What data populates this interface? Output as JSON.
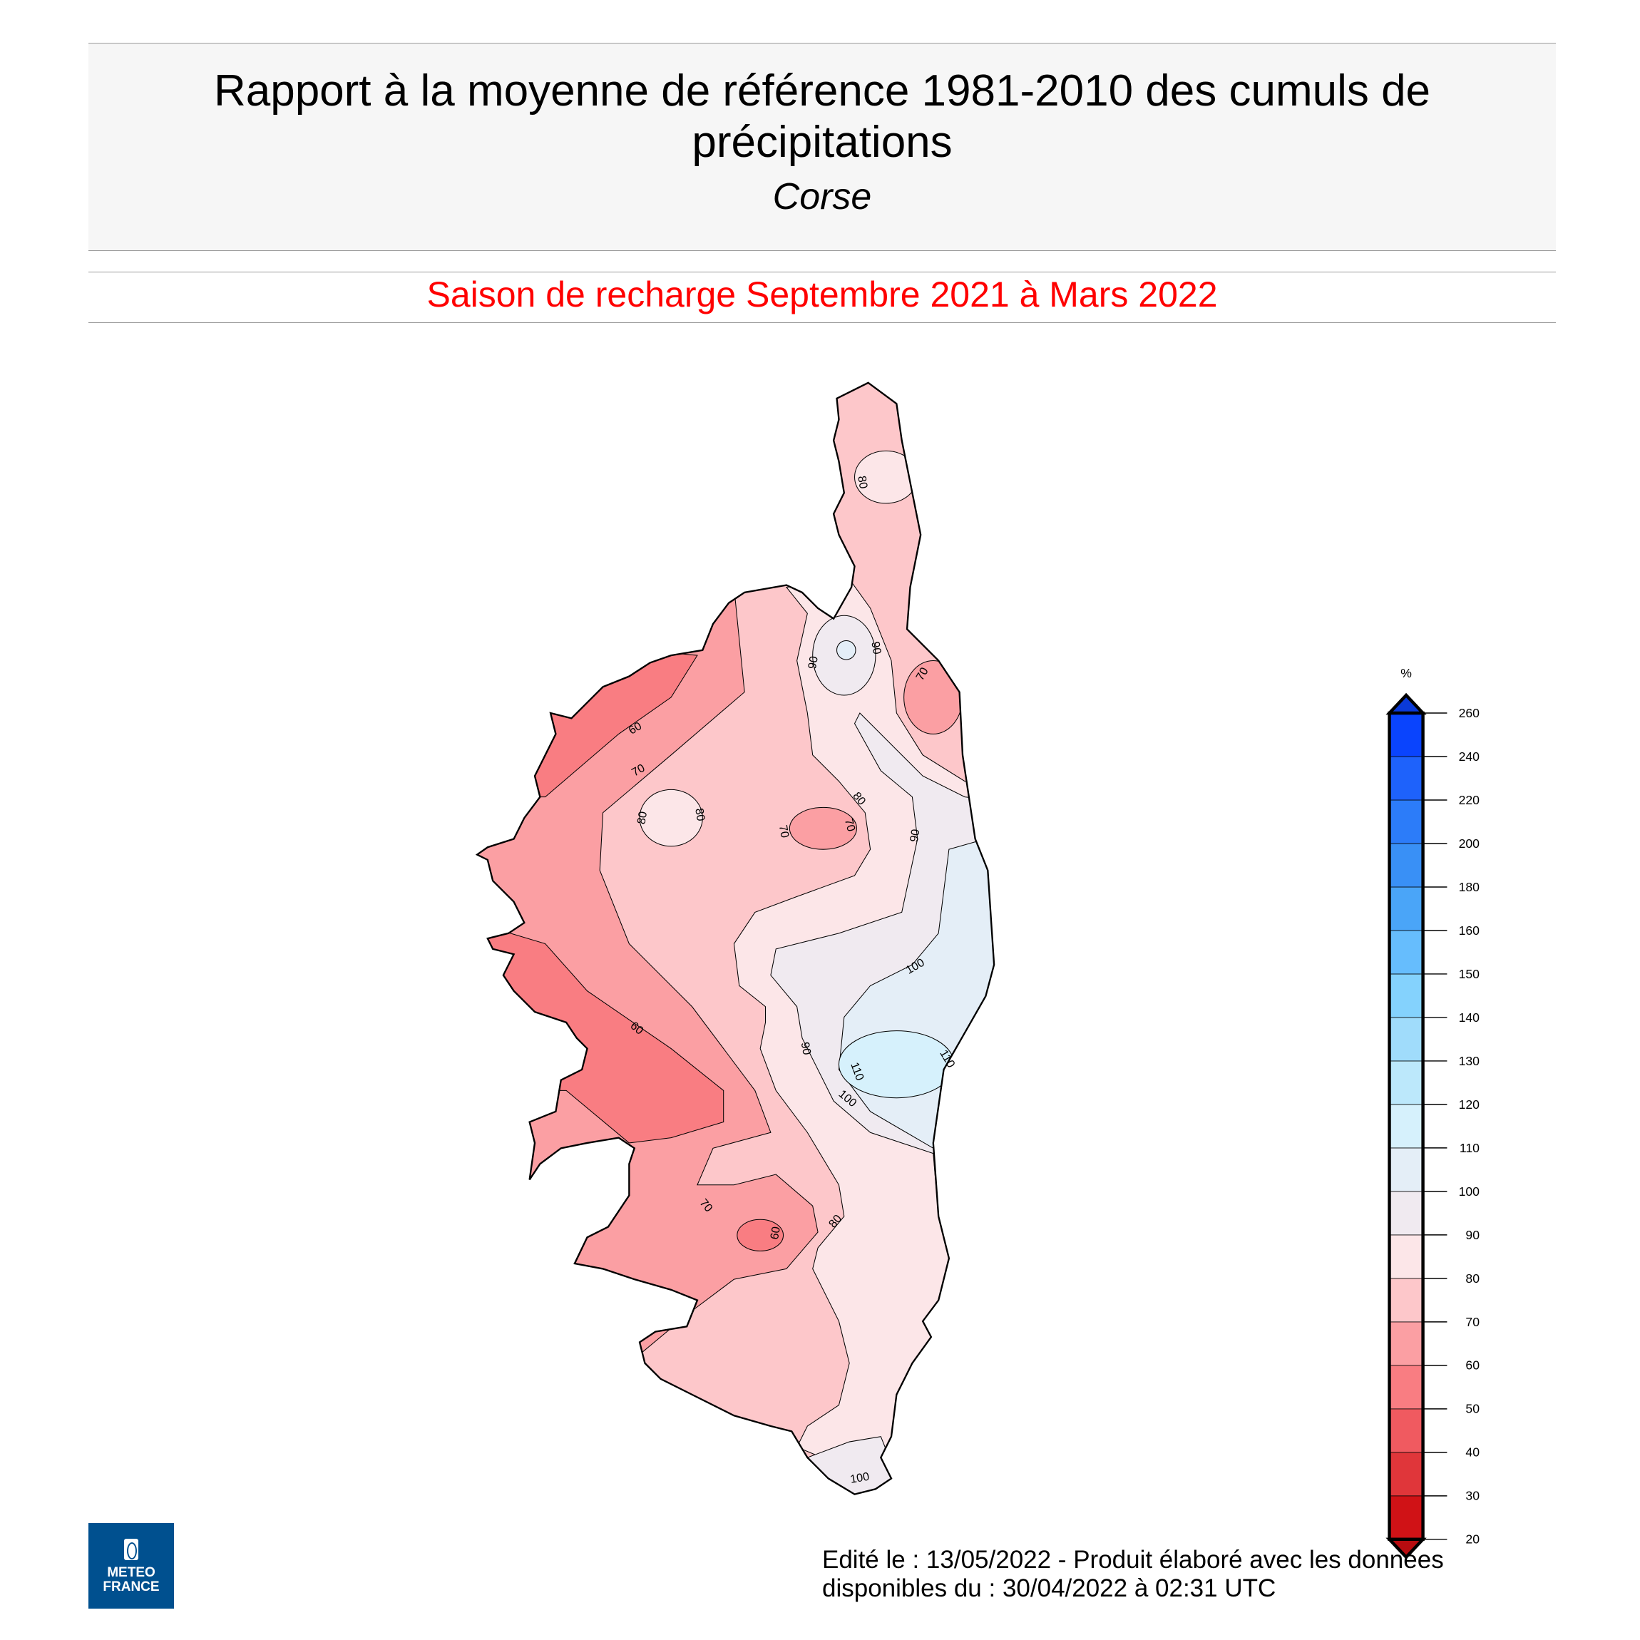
{
  "header": {
    "title_line1": "Rapport à la moyenne de référence 1981-2010 des cumuls de",
    "title_line2": "précipitations",
    "region": "Corse"
  },
  "subtitle": "Saison de recharge  Septembre 2021 à Mars 2022",
  "footer": {
    "line1": "Edité le : 13/05/2022 - Produit élaboré avec les données",
    "line2": "disponibles du : 30/04/2022 à 02:31 UTC"
  },
  "logo": {
    "line1": "METEO",
    "line2": "FRANCE",
    "color": "#00508f"
  },
  "chart_data": {
    "type": "heatmap",
    "subtype": "filled contour map",
    "legend": {
      "unit": "%",
      "placement": "right",
      "ticks": [
        "20",
        "30",
        "40",
        "50",
        "60",
        "70",
        "80",
        "90",
        "100",
        "110",
        "120",
        "130",
        "140",
        "150",
        "160",
        "180",
        "200",
        "220",
        "240",
        "260"
      ],
      "colors": [
        "#d01216",
        "#e0363a",
        "#f05a60",
        "#f97d82",
        "#fb9fa3",
        "#fdc7ca",
        "#fce6e8",
        "#f0eaf0",
        "#e4eef7",
        "#d6f1fc",
        "#bce8fb",
        "#a0dcfb",
        "#84d2fd",
        "#66bdfd",
        "#4aa5f8",
        "#3990f6",
        "#2c7cf9",
        "#1e62fb",
        "#0a44fd"
      ],
      "extend_low_color": "#b80c10",
      "extend_high_color": "#0a3ad8"
    },
    "contour_labels": [
      "80",
      "90",
      "90",
      "70",
      "60",
      "70",
      "80",
      "80",
      "70",
      "70",
      "80",
      "90",
      "100",
      "60",
      "90",
      "110",
      "110",
      "100",
      "70",
      "60",
      "80",
      "100"
    ]
  }
}
